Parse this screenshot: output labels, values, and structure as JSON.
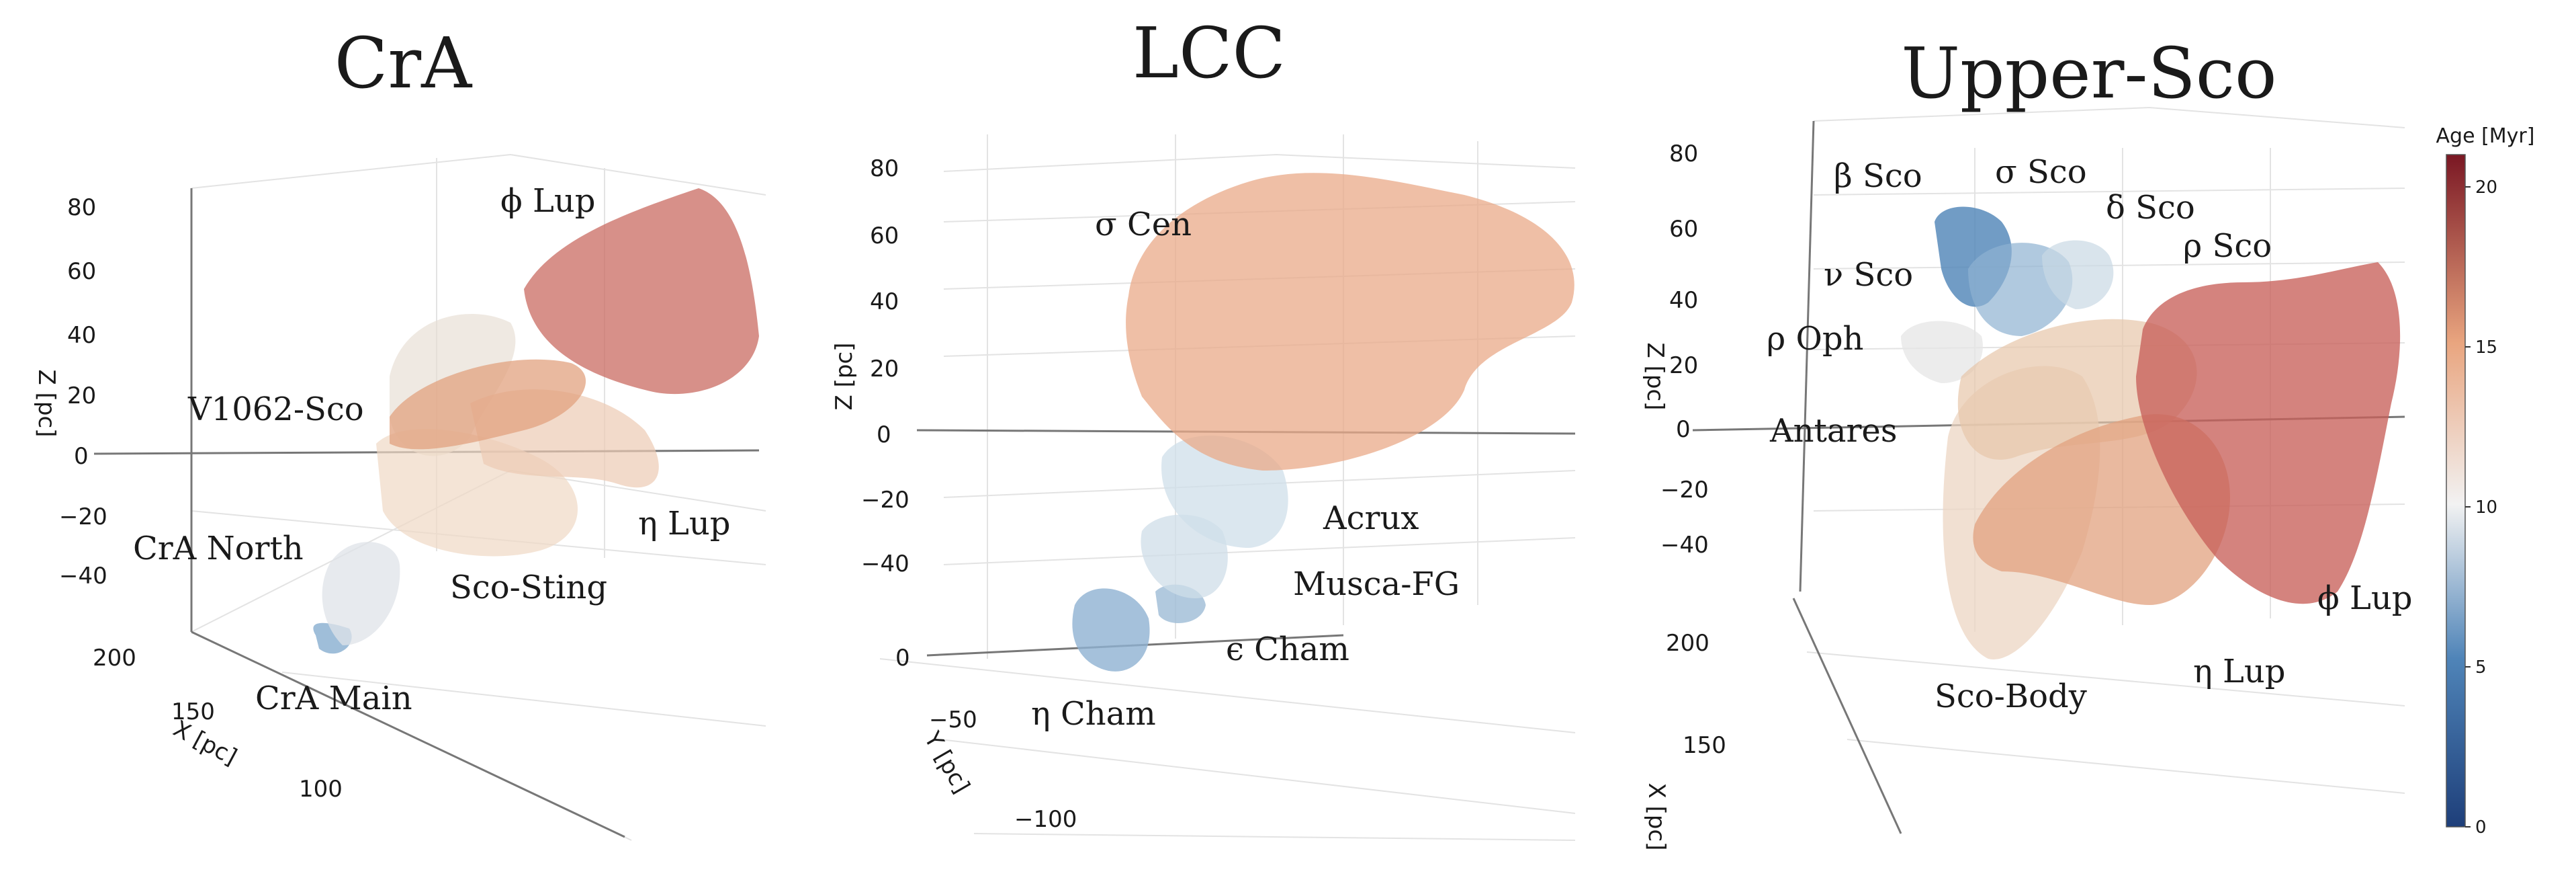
{
  "chart_data": [
    {
      "type": "other",
      "title": "CrA",
      "z_axis": {
        "label": "Z [pc]",
        "ticks": [
          "80",
          "60",
          "40",
          "20",
          "0",
          "−20",
          "−40"
        ]
      },
      "x_axis": {
        "label": "X [pc]",
        "ticks": [
          "200",
          "150",
          "100"
        ]
      },
      "annotations": [
        "ϕ Lup",
        "V1062-Sco",
        "η Lup",
        "CrA North",
        "Sco-Sting",
        "CrA Main"
      ]
    },
    {
      "type": "other",
      "title": "LCC",
      "z_axis": {
        "label": "Z [pc]",
        "ticks": [
          "80",
          "60",
          "40",
          "20",
          "0",
          "−20",
          "−40"
        ]
      },
      "y_axis": {
        "label": "Y [pc]",
        "ticks": [
          "0",
          "−50",
          "−100"
        ]
      },
      "annotations": [
        "σ Cen",
        "Acrux",
        "Musca-FG",
        "ϵ Cham",
        "η Cham"
      ]
    },
    {
      "type": "other",
      "title": "Upper-Sco",
      "z_axis": {
        "label": "Z [pc]",
        "ticks": [
          "80",
          "60",
          "40",
          "20",
          "0",
          "−20",
          "−40"
        ]
      },
      "x_axis": {
        "label": "X [pc]",
        "ticks": [
          "200",
          "150"
        ]
      },
      "annotations": [
        "β Sco",
        "σ Sco",
        "δ Sco",
        "ρ Sco",
        "ν Sco",
        "ρ Oph",
        "Antares",
        "ϕ Lup",
        "η Lup",
        "Sco-Body"
      ]
    }
  ],
  "colorbar": {
    "label": "Age [Myr]",
    "ticks": [
      "20",
      "15",
      "10",
      "5",
      "0"
    ],
    "range": [
      0,
      21
    ],
    "colors": {
      "young": "#1e3f7a",
      "mid": "#f3f3f3",
      "old": "#7a1723"
    }
  }
}
